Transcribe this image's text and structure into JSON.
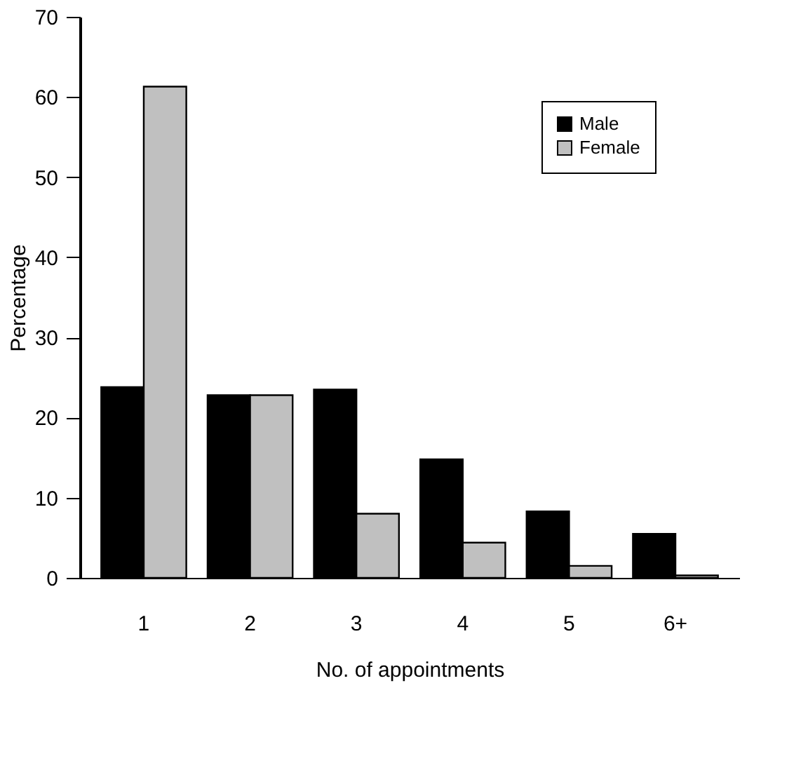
{
  "chart_data": {
    "type": "bar",
    "xlabel": "No. of appointments",
    "ylabel": "Percentage",
    "categories": [
      "1",
      "2",
      "3",
      "4",
      "5",
      "6+"
    ],
    "series": [
      {
        "name": "Male",
        "color": "#000000",
        "values": [
          23.8,
          22.8,
          23.5,
          14.8,
          8.3,
          5.5
        ]
      },
      {
        "name": "Female",
        "color": "#c0c0c0",
        "values": [
          61.3,
          22.8,
          8.0,
          4.4,
          1.5,
          0.3
        ]
      }
    ],
    "ylim": [
      0,
      70
    ],
    "yticks": [
      0,
      10,
      20,
      30,
      40,
      50,
      60,
      70
    ],
    "grid": false,
    "legend": "top right"
  }
}
